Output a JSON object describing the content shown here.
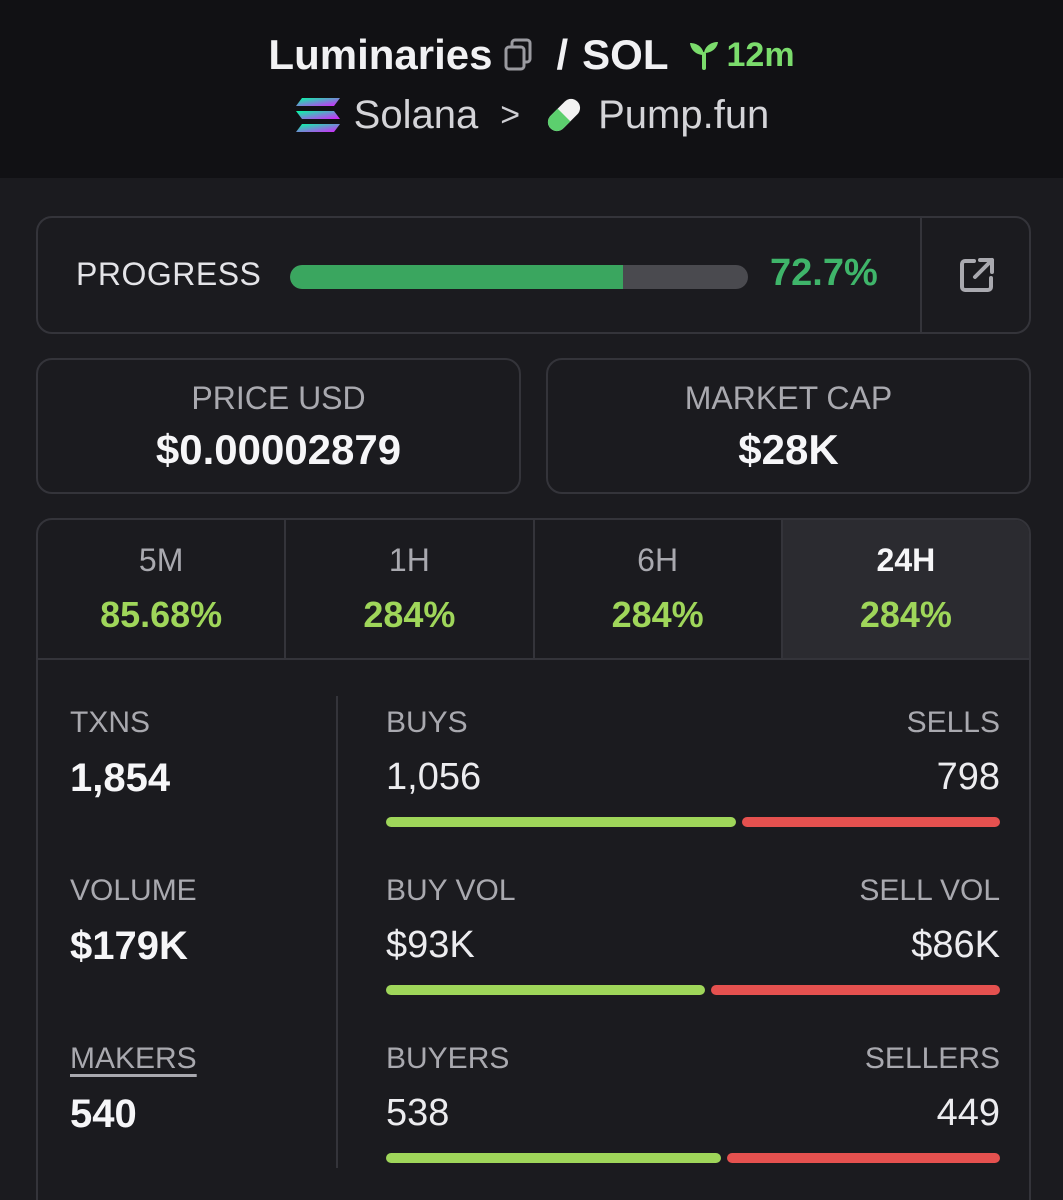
{
  "header": {
    "token_name": "Luminaries",
    "separator": "/",
    "quote": "SOL",
    "age": "12m",
    "chain": "Solana",
    "chevron": ">",
    "dex": "Pump.fun"
  },
  "progress": {
    "label": "PROGRESS",
    "value_text": "72.7%",
    "fraction": 0.727
  },
  "price": {
    "label": "PRICE USD",
    "value": "$0.00002879"
  },
  "market_cap": {
    "label": "MARKET CAP",
    "value": "$28K"
  },
  "tabs": [
    {
      "label": "5M",
      "value": "85.68%"
    },
    {
      "label": "1H",
      "value": "284%"
    },
    {
      "label": "6H",
      "value": "284%"
    },
    {
      "label": "24H",
      "value": "284%",
      "active": true
    }
  ],
  "metrics": {
    "txns": {
      "label": "TXNS",
      "value": "1,854"
    },
    "volume": {
      "label": "VOLUME",
      "value": "$179K"
    },
    "makers": {
      "label": "MAKERS",
      "value": "540"
    }
  },
  "splits": {
    "txns": {
      "left_label": "BUYS",
      "right_label": "SELLS",
      "left_value": "1,056",
      "right_value": "798",
      "left_fraction": 0.57
    },
    "volume": {
      "left_label": "BUY VOL",
      "right_label": "SELL VOL",
      "left_value": "$93K",
      "right_value": "$86K",
      "left_fraction": 0.52
    },
    "makers": {
      "left_label": "BUYERS",
      "right_label": "SELLERS",
      "left_value": "538",
      "right_value": "449",
      "left_fraction": 0.545
    }
  },
  "colors": {
    "green_progress": "#3aa65f",
    "green_change": "#9fd65a",
    "buy": "#9fd65a",
    "sell": "#e5514f"
  },
  "icons": [
    "copy-icon",
    "seedling-icon",
    "solana-logo-icon",
    "pill-icon",
    "external-link-icon"
  ]
}
